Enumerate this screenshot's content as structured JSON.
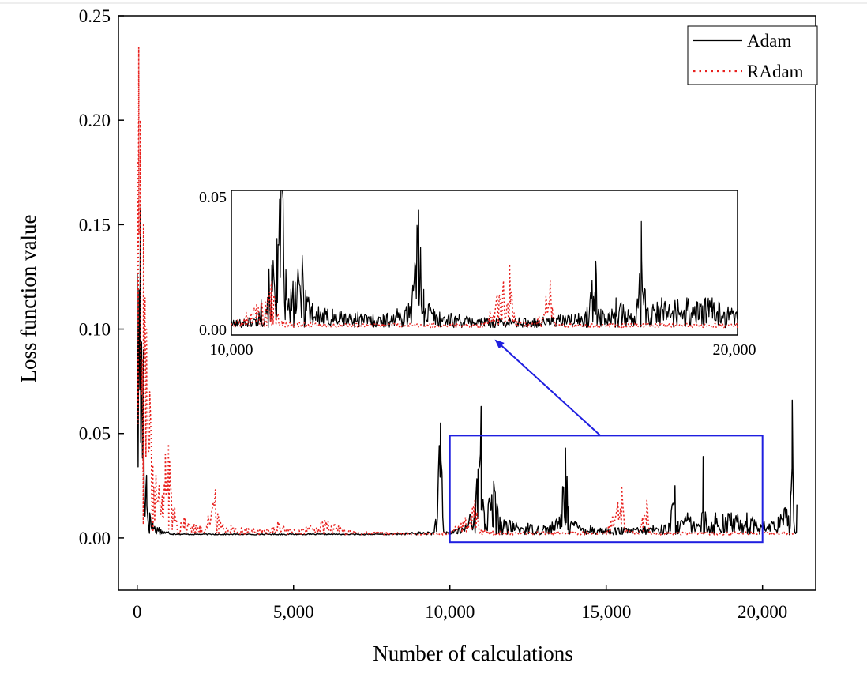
{
  "chart_data": {
    "type": "line",
    "title": "",
    "xlabel": "Number of calculations",
    "ylabel": "Loss function value",
    "xlim": [
      -600,
      21700
    ],
    "ylim": [
      -0.025,
      0.25
    ],
    "x_ticks": [
      0,
      5000,
      10000,
      15000,
      20000
    ],
    "x_tick_labels": [
      "0",
      "5,000",
      "10,000",
      "15,000",
      "20,000"
    ],
    "y_ticks": [
      0.0,
      0.05,
      0.1,
      0.15,
      0.2,
      0.25
    ],
    "y_tick_labels": [
      "0.00",
      "0.05",
      "0.10",
      "0.15",
      "0.20",
      "0.25"
    ],
    "legend": {
      "position": "top-right",
      "entries": [
        "Adam",
        "RAdam"
      ]
    },
    "series": [
      {
        "name": "Adam",
        "color": "#000000",
        "style": "solid",
        "x": [
          0,
          100,
          200,
          300,
          400,
          500,
          700,
          1000,
          1500,
          2500,
          4000,
          6000,
          8000,
          9000,
          9500,
          9700,
          9750,
          9800,
          9900,
          10000,
          10500,
          10900,
          11000,
          11100,
          11400,
          11600,
          12000,
          12500,
          13000,
          13500,
          13700,
          13800,
          14000,
          14500,
          15000,
          15500,
          16000,
          16500,
          17000,
          17200,
          17300,
          17600,
          18000,
          18100,
          18200,
          18500,
          19000,
          19500,
          20000,
          20500,
          20900,
          20950,
          21000,
          21100
        ],
        "y": [
          0.127,
          0.158,
          0.09,
          0.03,
          0.012,
          0.008,
          0.005,
          0.003,
          0.002,
          0.002,
          0.002,
          0.002,
          0.002,
          0.003,
          0.003,
          0.055,
          0.03,
          0.003,
          0.003,
          0.004,
          0.006,
          0.033,
          0.063,
          0.012,
          0.027,
          0.01,
          0.008,
          0.007,
          0.006,
          0.01,
          0.043,
          0.015,
          0.008,
          0.006,
          0.005,
          0.005,
          0.005,
          0.006,
          0.007,
          0.025,
          0.008,
          0.012,
          0.006,
          0.039,
          0.008,
          0.012,
          0.012,
          0.012,
          0.008,
          0.01,
          0.02,
          0.066,
          0.008,
          0.016
        ]
      },
      {
        "name": "RAdam",
        "color": "#e8211e",
        "style": "dotted",
        "x": [
          0,
          50,
          100,
          200,
          300,
          400,
          500,
          600,
          700,
          800,
          900,
          1000,
          1200,
          1500,
          2000,
          2500,
          2600,
          3000,
          3500,
          4000,
          4500,
          5000,
          6000,
          7000,
          8000,
          9000,
          10000,
          10500,
          10800,
          11000,
          12000,
          13000,
          14000,
          15000,
          15500,
          15600,
          16000,
          16300,
          16400,
          17000,
          18000,
          19000,
          20000,
          21000
        ],
        "y": [
          0.18,
          0.235,
          0.2,
          0.15,
          0.1,
          0.07,
          0.035,
          0.03,
          0.025,
          0.02,
          0.04,
          0.045,
          0.015,
          0.01,
          0.006,
          0.023,
          0.01,
          0.006,
          0.005,
          0.004,
          0.008,
          0.004,
          0.009,
          0.003,
          0.003,
          0.002,
          0.003,
          0.01,
          0.018,
          0.004,
          0.003,
          0.003,
          0.003,
          0.003,
          0.024,
          0.004,
          0.003,
          0.018,
          0.003,
          0.003,
          0.003,
          0.003,
          0.003,
          0.003
        ]
      }
    ],
    "inset": {
      "xlim": [
        10000,
        20000
      ],
      "ylim": [
        0.0,
        0.05
      ],
      "x_tick_labels": [
        "10,000",
        "20,000"
      ],
      "y_tick_labels": [
        "0.00",
        "0.05"
      ]
    },
    "zoom_box": {
      "x_range": [
        10000,
        20000
      ],
      "y_range": [
        -0.002,
        0.049
      ]
    }
  }
}
